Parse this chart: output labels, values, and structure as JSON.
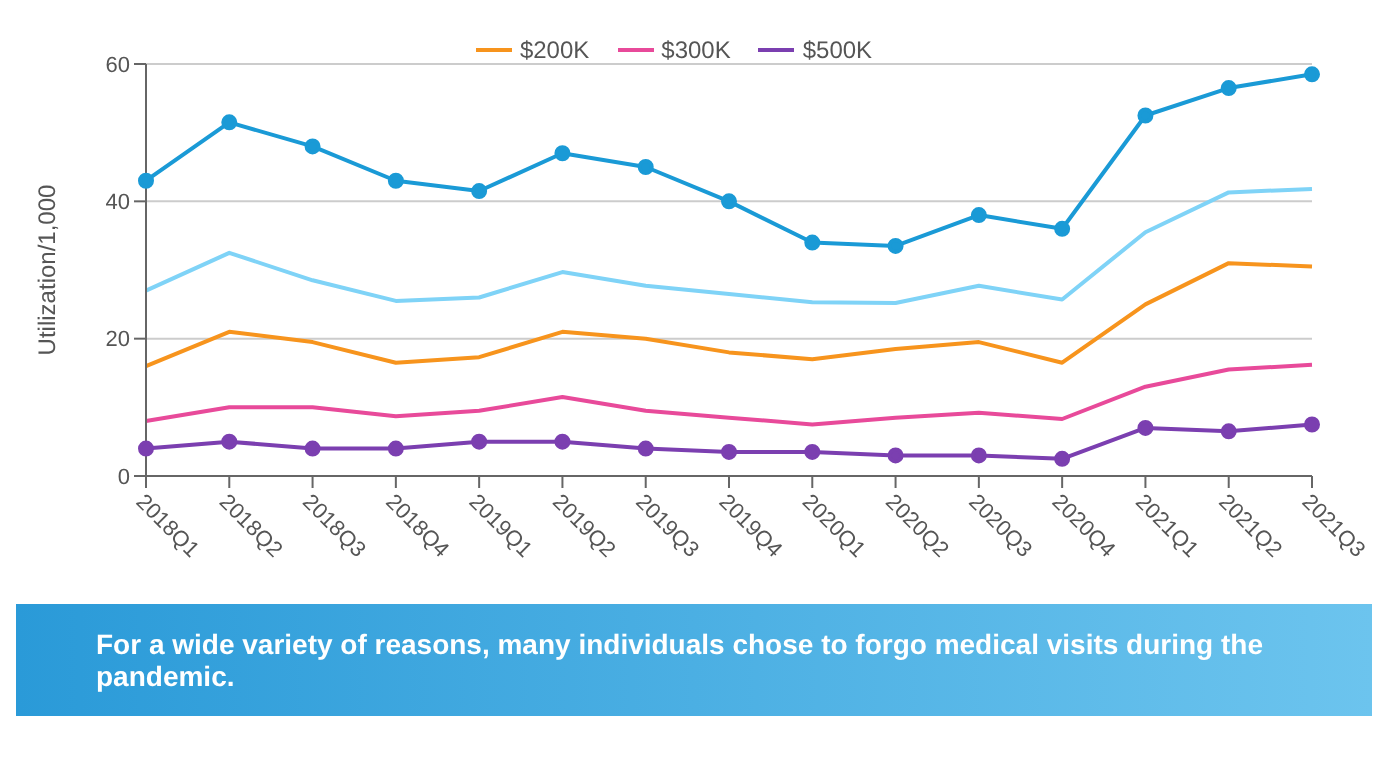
{
  "chart_data": {
    "type": "line",
    "ylabel": "Utilization/1,000",
    "categories": [
      "2018Q1",
      "2018Q2",
      "2018Q3",
      "2018Q4",
      "2019Q1",
      "2019Q2",
      "2019Q3",
      "2019Q4",
      "2020Q1",
      "2020Q2",
      "2020Q3",
      "2020Q4",
      "2021Q1",
      "2021Q2",
      "2021Q3"
    ],
    "series": [
      {
        "color": "#1a9ad6",
        "marker": "circle",
        "values": [
          43,
          51.5,
          48,
          43,
          41.5,
          47,
          45,
          40,
          34,
          33.5,
          38,
          36,
          52.5,
          56.5,
          58.5
        ]
      },
      {
        "color": "#7fd3f7",
        "marker": "none",
        "values": [
          27,
          32.5,
          28.5,
          25.5,
          26,
          29.7,
          27.7,
          26.5,
          25.3,
          25.2,
          27.7,
          25.7,
          35.5,
          41.3,
          41.8
        ]
      },
      {
        "name": "$200K",
        "color": "#f7941d",
        "marker": "none",
        "values": [
          16,
          21,
          19.5,
          16.5,
          17.3,
          21,
          20,
          18,
          17,
          18.5,
          19.5,
          16.5,
          25,
          31,
          30.5
        ]
      },
      {
        "name": "$300K",
        "color": "#e84a9a",
        "marker": "none",
        "values": [
          8,
          10,
          10,
          8.7,
          9.5,
          11.5,
          9.5,
          8.5,
          7.5,
          8.5,
          9.2,
          8.3,
          13,
          15.5,
          16.2
        ]
      },
      {
        "name": "$500K",
        "color": "#7b3fb0",
        "marker": "circle",
        "values": [
          4,
          5,
          4,
          4,
          5,
          5,
          4,
          3.5,
          3.5,
          3,
          3,
          2.5,
          7,
          6.5,
          7.5
        ]
      }
    ],
    "ylim": [
      0,
      60
    ],
    "yticks": [
      0,
      20,
      40,
      60
    ],
    "grid": "y",
    "legend": "top",
    "line_style": "solid",
    "annotations": [
      "For a wide variety of reasons, many individuals chose to forgo medical visits during the pandemic."
    ]
  }
}
